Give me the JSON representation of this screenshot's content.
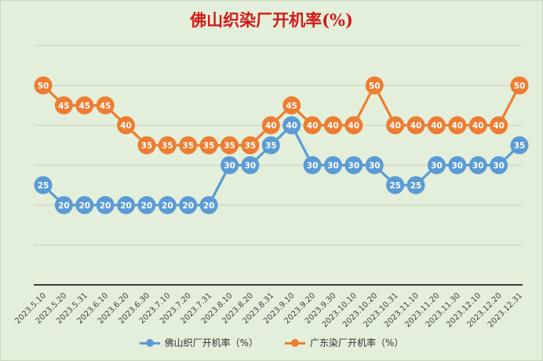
{
  "chart_data": {
    "type": "line",
    "title": "佛山织染厂开机率(%)",
    "x": [
      "2023.5.10",
      "2023.5.20",
      "2023.5.31",
      "2023.6.10",
      "2023.6.20",
      "2023.6.30",
      "2023.7.10",
      "2023.7.20",
      "2023.7.31",
      "2023.8.10",
      "2023.8.20",
      "2023.8.31",
      "2023.9.10",
      "2023.9.20",
      "2023.9.30",
      "2023.10.10",
      "2023.10.20",
      "2023.10.31",
      "2023.11.10",
      "2023.11.20",
      "2023.11.30",
      "2023.12.10",
      "2023.12.20",
      "2023.12.31"
    ],
    "series": [
      {
        "name": "佛山织厂开机率（%）",
        "color": "#5b9bd5",
        "values": [
          25,
          20,
          20,
          20,
          20,
          20,
          20,
          20,
          20,
          30,
          30,
          35,
          40,
          30,
          30,
          30,
          30,
          25,
          25,
          30,
          30,
          30,
          30,
          35
        ]
      },
      {
        "name": "广东染厂开机率（%）",
        "color": "#ed7d31",
        "values": [
          50,
          45,
          45,
          45,
          40,
          35,
          35,
          35,
          35,
          35,
          35,
          40,
          45,
          40,
          40,
          40,
          50,
          40,
          40,
          40,
          40,
          40,
          40,
          50
        ]
      }
    ],
    "ylim": [
      0,
      60
    ],
    "grid": true,
    "legend": "bottom",
    "data_labels": true
  }
}
